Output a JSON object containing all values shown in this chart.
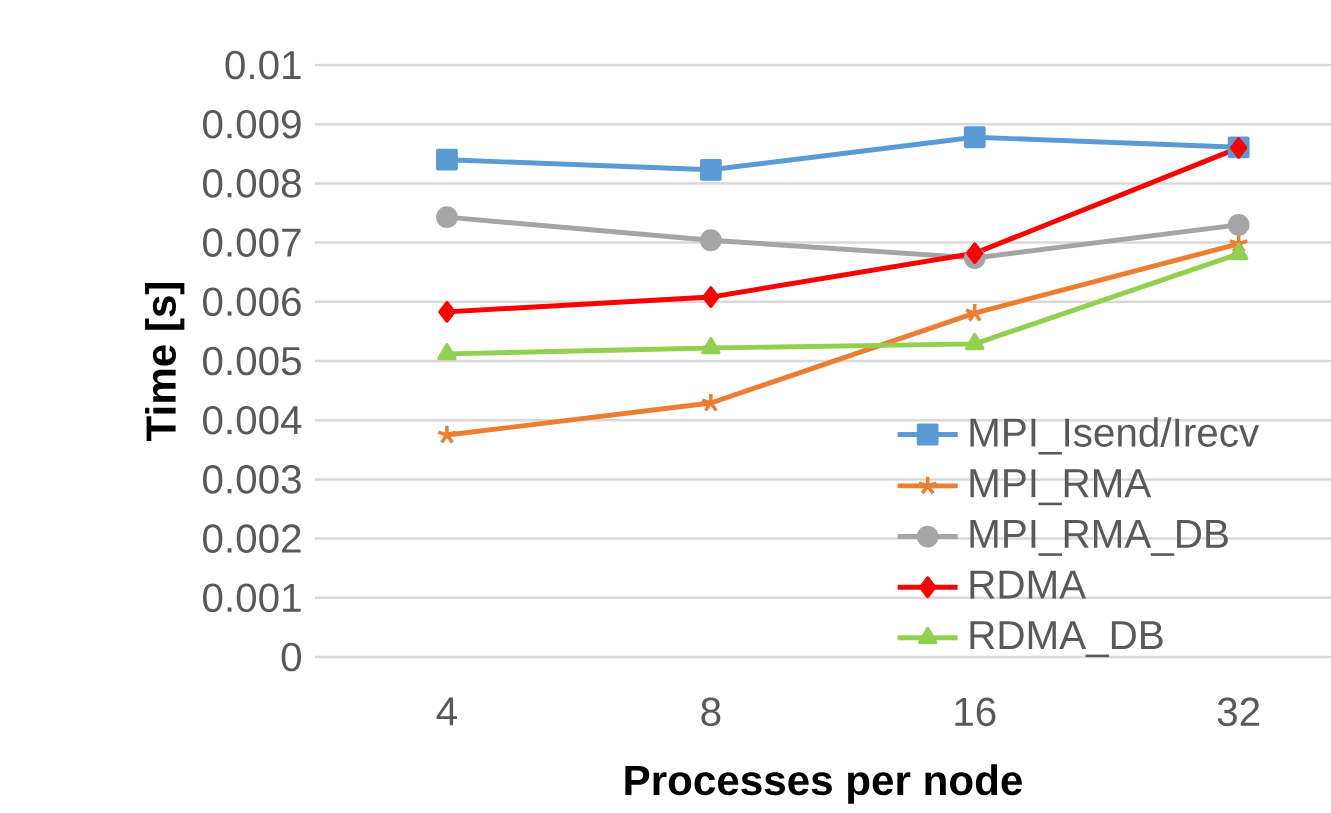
{
  "chart_data": {
    "type": "line",
    "xlabel": "Processes per node",
    "ylabel": "Time [s]",
    "categories": [
      "4",
      "8",
      "16",
      "32"
    ],
    "series": [
      {
        "name": "MPI_Isend/Irecv",
        "color": "#5b9bd5",
        "marker": "square",
        "values": [
          0.0084,
          0.00823,
          0.00878,
          0.00861
        ]
      },
      {
        "name": "MPI_RMA",
        "color": "#ed7d31",
        "marker": "cross",
        "values": [
          0.00375,
          0.00429,
          0.00581,
          0.00698
        ]
      },
      {
        "name": "MPI_RMA_DB",
        "color": "#a5a5a5",
        "marker": "circle",
        "values": [
          0.00743,
          0.00704,
          0.00674,
          0.0073
        ]
      },
      {
        "name": "RDMA",
        "color": "#ff0000",
        "marker": "diamond",
        "values": [
          0.00583,
          0.00608,
          0.00682,
          0.0086
        ]
      },
      {
        "name": "RDMA_DB",
        "color": "#92d050",
        "marker": "triangle",
        "values": [
          0.00512,
          0.00522,
          0.00529,
          0.00681
        ]
      }
    ],
    "ylim": [
      0,
      0.01
    ],
    "yticks": [
      0,
      0.001,
      0.002,
      0.003,
      0.004,
      0.005,
      0.006,
      0.007,
      0.008,
      0.009,
      0.01
    ],
    "grid": "y",
    "legend": "bottom right",
    "line_style": "solid"
  }
}
